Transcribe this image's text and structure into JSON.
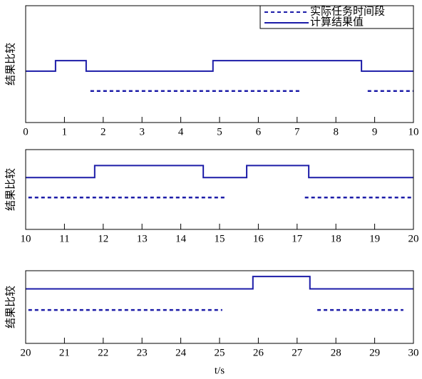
{
  "chart_data": [
    {
      "type": "line",
      "ylabel": "结果比较",
      "xlim": [
        0,
        10
      ],
      "xticks": [
        0,
        1,
        2,
        3,
        4,
        5,
        6,
        7,
        8,
        9,
        10
      ],
      "ylim": [
        0,
        1
      ],
      "legend": "upper right",
      "series": [
        {
          "name": "实际任务时间段",
          "color": "#1c1ca8",
          "style": "dashed",
          "x": [
            1.67,
            7.08,
            7.08,
            8.82,
            10
          ],
          "values": [
            0.27,
            0.27,
            null,
            0.27,
            0.27
          ]
        },
        {
          "name": "计算结果值",
          "color": "#1c1ca8",
          "style": "solid",
          "x": [
            0,
            0.77,
            0.77,
            1.56,
            1.56,
            4.83,
            4.83,
            8.66,
            8.66,
            10
          ],
          "values": [
            0.44,
            0.44,
            0.53,
            0.53,
            0.44,
            0.44,
            0.53,
            0.53,
            0.44,
            0.44
          ]
        }
      ]
    },
    {
      "type": "line",
      "ylabel": "结果比较",
      "xlim": [
        10,
        20
      ],
      "xticks": [
        10,
        11,
        12,
        13,
        14,
        15,
        16,
        17,
        18,
        19,
        20
      ],
      "ylim": [
        0,
        1
      ],
      "series": [
        {
          "color": "#1c1ca8",
          "style": "dashed",
          "x": [
            10.07,
            15.18,
            15.18,
            17.2,
            20
          ],
          "values": [
            0.4,
            0.4,
            null,
            0.4,
            0.4
          ]
        },
        {
          "color": "#1c1ca8",
          "style": "solid",
          "x": [
            10,
            11.78,
            11.78,
            14.58,
            14.58,
            15.7,
            15.7,
            17.3,
            17.3,
            20
          ],
          "values": [
            0.65,
            0.65,
            0.8,
            0.8,
            0.65,
            0.65,
            0.8,
            0.8,
            0.65,
            0.65
          ]
        }
      ]
    },
    {
      "type": "line",
      "ylabel": "结果比较",
      "xlabel": "t/s",
      "xlim": [
        20,
        30
      ],
      "xticks": [
        20,
        21,
        22,
        23,
        24,
        25,
        26,
        27,
        28,
        29,
        30
      ],
      "ylim": [
        0,
        1
      ],
      "series": [
        {
          "color": "#1c1ca8",
          "style": "dashed",
          "x": [
            20.07,
            25.07,
            25.07,
            27.52,
            29.74
          ],
          "values": [
            0.46,
            0.46,
            null,
            0.46,
            0.46
          ]
        },
        {
          "color": "#1c1ca8",
          "style": "solid",
          "x": [
            20,
            25.86,
            25.86,
            27.33,
            27.33,
            30
          ],
          "values": [
            0.75,
            0.75,
            0.92,
            0.92,
            0.75,
            0.75
          ]
        }
      ]
    }
  ]
}
